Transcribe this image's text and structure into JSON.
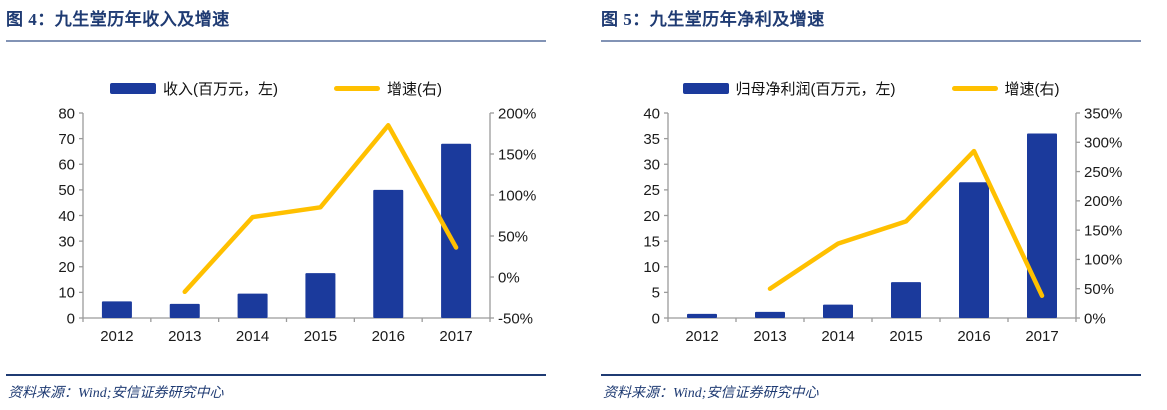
{
  "colors": {
    "title_navy": "#1F3B73",
    "bar_blue": "#1B3A9C",
    "line_gold": "#FFC000",
    "title_rule": "#8293B5",
    "source_rule": "#1F3B73",
    "axis_line": "#9B9B9B",
    "axis_text": "#1A1A1A"
  },
  "panels": [
    {
      "title": "图 4：九生堂历年收入及增速",
      "source": "资料来源：Wind;安信证券研究中心"
    },
    {
      "title": "图 5：九生堂历年净利及增速",
      "source": "资料来源：Wind;安信证券研究中心"
    }
  ],
  "chart_data": [
    {
      "type": "bar",
      "subtype": "combo-bar-line-dual-axis",
      "title": "图 4：九生堂历年收入及增速",
      "categories": [
        "2012",
        "2013",
        "2014",
        "2015",
        "2016",
        "2017"
      ],
      "series": [
        {
          "name": "收入(百万元，左)",
          "type": "bar",
          "axis": "left",
          "color": "#1B3A9C",
          "values": [
            6.5,
            5.5,
            9.5,
            17.5,
            50,
            68
          ]
        },
        {
          "name": "增速(右)",
          "type": "line",
          "axis": "right",
          "color": "#FFC000",
          "values": [
            null,
            -18,
            73,
            85,
            185,
            36
          ]
        }
      ],
      "left_axis": {
        "min": 0,
        "max": 80,
        "step": 10,
        "labels": [
          "0",
          "10",
          "20",
          "30",
          "40",
          "50",
          "60",
          "70",
          "80"
        ]
      },
      "right_axis": {
        "min": -50,
        "max": 200,
        "step": 50,
        "format": "percent",
        "labels": [
          "-50%",
          "0%",
          "50%",
          "100%",
          "150%",
          "200%"
        ]
      },
      "legend_position": "top",
      "grid": false
    },
    {
      "type": "bar",
      "subtype": "combo-bar-line-dual-axis",
      "title": "图 5：九生堂历年净利及增速",
      "categories": [
        "2012",
        "2013",
        "2014",
        "2015",
        "2016",
        "2017"
      ],
      "series": [
        {
          "name": "归母净利润(百万元，左)",
          "type": "bar",
          "axis": "left",
          "color": "#1B3A9C",
          "values": [
            0.8,
            1.2,
            2.6,
            7,
            26.5,
            36
          ]
        },
        {
          "name": "增速(右)",
          "type": "line",
          "axis": "right",
          "color": "#FFC000",
          "values": [
            null,
            50,
            127,
            165,
            285,
            38
          ]
        }
      ],
      "left_axis": {
        "min": 0,
        "max": 40,
        "step": 5,
        "labels": [
          "0",
          "5",
          "10",
          "15",
          "20",
          "25",
          "30",
          "35",
          "40"
        ]
      },
      "right_axis": {
        "min": 0,
        "max": 350,
        "step": 50,
        "format": "percent",
        "labels": [
          "0%",
          "50%",
          "100%",
          "150%",
          "200%",
          "250%",
          "300%",
          "350%"
        ]
      },
      "legend_position": "top",
      "grid": false
    }
  ]
}
